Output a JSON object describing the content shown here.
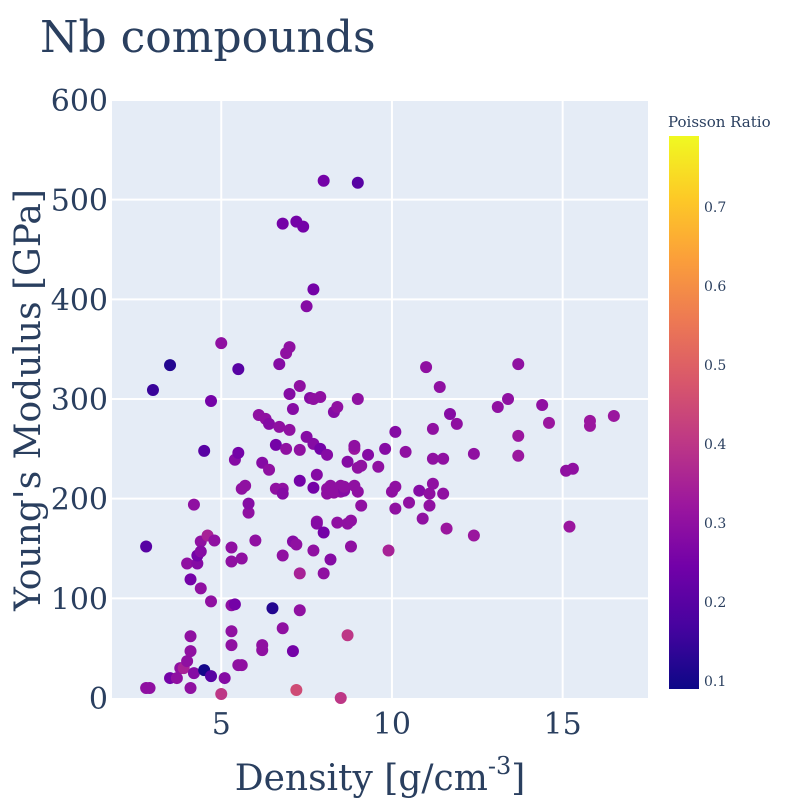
{
  "chart_data": {
    "type": "scatter",
    "title": "Nb compounds",
    "xlabel": "Density [g/cm",
    "xlabel_sup": "-3",
    "xlabel_end": "]",
    "ylabel": "Young's Modulus [GPa]",
    "xlim": [
      1.8,
      17.5
    ],
    "ylim": [
      0,
      600
    ],
    "xticks": [
      5,
      10,
      15
    ],
    "yticks": [
      0,
      100,
      200,
      300,
      400,
      500,
      600
    ],
    "colorbar": {
      "title": "Poisson Ratio",
      "range": [
        0.09,
        0.79
      ],
      "ticks": [
        0.1,
        0.2,
        0.3,
        0.4,
        0.5,
        0.6,
        0.7
      ],
      "colorscale": [
        "#0d0887",
        "#46039f",
        "#7201a8",
        "#9c179e",
        "#bd3786",
        "#d8576b",
        "#ed7953",
        "#fb9f3a",
        "#fdca26",
        "#f0f921"
      ]
    },
    "grid": true,
    "points": [
      [
        2.8,
        10,
        0.3
      ],
      [
        2.9,
        10,
        0.3
      ],
      [
        2.8,
        152,
        0.2
      ],
      [
        3.0,
        309,
        0.15
      ],
      [
        3.5,
        334,
        0.12
      ],
      [
        3.5,
        20,
        0.25
      ],
      [
        3.7,
        20,
        0.3
      ],
      [
        3.8,
        30,
        0.3
      ],
      [
        3.9,
        30,
        0.35
      ],
      [
        4.0,
        135,
        0.3
      ],
      [
        4.0,
        37,
        0.3
      ],
      [
        4.1,
        62,
        0.3
      ],
      [
        4.1,
        47,
        0.3
      ],
      [
        4.1,
        10,
        0.3
      ],
      [
        4.1,
        119,
        0.25
      ],
      [
        4.2,
        194,
        0.3
      ],
      [
        4.2,
        25,
        0.28
      ],
      [
        4.3,
        135,
        0.28
      ],
      [
        4.3,
        143,
        0.25
      ],
      [
        4.4,
        157,
        0.3
      ],
      [
        4.4,
        147,
        0.28
      ],
      [
        4.4,
        110,
        0.3
      ],
      [
        4.5,
        28,
        0.1
      ],
      [
        4.5,
        248,
        0.2
      ],
      [
        4.6,
        163,
        0.35
      ],
      [
        4.7,
        22,
        0.2
      ],
      [
        4.7,
        97,
        0.3
      ],
      [
        4.7,
        298,
        0.25
      ],
      [
        4.8,
        158,
        0.3
      ],
      [
        5.0,
        4,
        0.4
      ],
      [
        5.0,
        356,
        0.3
      ],
      [
        5.1,
        20,
        0.28
      ],
      [
        5.3,
        93,
        0.3
      ],
      [
        5.3,
        67,
        0.3
      ],
      [
        5.3,
        53,
        0.3
      ],
      [
        5.3,
        137,
        0.3
      ],
      [
        5.3,
        151,
        0.3
      ],
      [
        5.4,
        239,
        0.28
      ],
      [
        5.4,
        94,
        0.25
      ],
      [
        5.5,
        246,
        0.25
      ],
      [
        5.5,
        330,
        0.2
      ],
      [
        5.5,
        33,
        0.3
      ],
      [
        5.6,
        33,
        0.3
      ],
      [
        5.6,
        140,
        0.3
      ],
      [
        5.6,
        210,
        0.3
      ],
      [
        5.7,
        213,
        0.3
      ],
      [
        5.8,
        186,
        0.3
      ],
      [
        5.8,
        195,
        0.28
      ],
      [
        6.0,
        158,
        0.3
      ],
      [
        6.1,
        284,
        0.3
      ],
      [
        6.2,
        48,
        0.3
      ],
      [
        6.2,
        53,
        0.3
      ],
      [
        6.2,
        236,
        0.28
      ],
      [
        6.3,
        280,
        0.3
      ],
      [
        6.4,
        275,
        0.28
      ],
      [
        6.4,
        229,
        0.3
      ],
      [
        6.5,
        90,
        0.12
      ],
      [
        6.6,
        210,
        0.3
      ],
      [
        6.6,
        254,
        0.25
      ],
      [
        6.7,
        335,
        0.28
      ],
      [
        6.7,
        272,
        0.3
      ],
      [
        6.8,
        476,
        0.25
      ],
      [
        6.8,
        210,
        0.3
      ],
      [
        6.8,
        205,
        0.28
      ],
      [
        6.8,
        70,
        0.3
      ],
      [
        6.8,
        143,
        0.3
      ],
      [
        6.9,
        346,
        0.3
      ],
      [
        6.9,
        250,
        0.3
      ],
      [
        7.0,
        305,
        0.28
      ],
      [
        7.0,
        269,
        0.3
      ],
      [
        7.0,
        352,
        0.3
      ],
      [
        7.1,
        290,
        0.28
      ],
      [
        7.1,
        47,
        0.25
      ],
      [
        7.1,
        157,
        0.28
      ],
      [
        7.2,
        478,
        0.25
      ],
      [
        7.2,
        154,
        0.3
      ],
      [
        7.2,
        8,
        0.45
      ],
      [
        7.3,
        88,
        0.3
      ],
      [
        7.3,
        125,
        0.35
      ],
      [
        7.3,
        313,
        0.3
      ],
      [
        7.3,
        249,
        0.3
      ],
      [
        7.3,
        218,
        0.25
      ],
      [
        7.4,
        473,
        0.25
      ],
      [
        7.5,
        393,
        0.28
      ],
      [
        7.5,
        262,
        0.28
      ],
      [
        7.6,
        301,
        0.28
      ],
      [
        7.7,
        410,
        0.25
      ],
      [
        7.7,
        300,
        0.3
      ],
      [
        7.7,
        255,
        0.28
      ],
      [
        7.7,
        211,
        0.25
      ],
      [
        7.7,
        148,
        0.3
      ],
      [
        7.8,
        224,
        0.28
      ],
      [
        7.8,
        177,
        0.3
      ],
      [
        7.8,
        175,
        0.28
      ],
      [
        7.9,
        250,
        0.25
      ],
      [
        7.9,
        302,
        0.3
      ],
      [
        8.0,
        519,
        0.25
      ],
      [
        8.0,
        125,
        0.3
      ],
      [
        8.0,
        166,
        0.25
      ],
      [
        8.1,
        244,
        0.28
      ],
      [
        8.1,
        210,
        0.3
      ],
      [
        8.1,
        205,
        0.3
      ],
      [
        8.2,
        139,
        0.28
      ],
      [
        8.2,
        213,
        0.3
      ],
      [
        8.3,
        287,
        0.28
      ],
      [
        8.3,
        206,
        0.3
      ],
      [
        8.4,
        292,
        0.3
      ],
      [
        8.4,
        176,
        0.3
      ],
      [
        8.5,
        0,
        0.4
      ],
      [
        8.5,
        213,
        0.3
      ],
      [
        8.5,
        207,
        0.3
      ],
      [
        8.6,
        208,
        0.28
      ],
      [
        8.6,
        212,
        0.3
      ],
      [
        8.7,
        63,
        0.4
      ],
      [
        8.7,
        237,
        0.28
      ],
      [
        8.7,
        175,
        0.3
      ],
      [
        8.8,
        152,
        0.3
      ],
      [
        8.8,
        178,
        0.3
      ],
      [
        8.9,
        213,
        0.3
      ],
      [
        8.9,
        250,
        0.32
      ],
      [
        8.9,
        253,
        0.3
      ],
      [
        9.0,
        300,
        0.3
      ],
      [
        9.0,
        207,
        0.3
      ],
      [
        9.0,
        231,
        0.3
      ],
      [
        9.0,
        517,
        0.2
      ],
      [
        9.1,
        193,
        0.3
      ],
      [
        9.1,
        233,
        0.3
      ],
      [
        9.3,
        244,
        0.28
      ],
      [
        9.6,
        232,
        0.3
      ],
      [
        9.8,
        250,
        0.28
      ],
      [
        9.9,
        148,
        0.35
      ],
      [
        10.0,
        207,
        0.3
      ],
      [
        10.1,
        267,
        0.28
      ],
      [
        10.1,
        212,
        0.3
      ],
      [
        10.1,
        190,
        0.3
      ],
      [
        10.4,
        247,
        0.3
      ],
      [
        10.5,
        196,
        0.3
      ],
      [
        10.8,
        208,
        0.28
      ],
      [
        10.9,
        180,
        0.3
      ],
      [
        11.0,
        332,
        0.3
      ],
      [
        11.1,
        205,
        0.3
      ],
      [
        11.1,
        193,
        0.3
      ],
      [
        11.2,
        240,
        0.3
      ],
      [
        11.2,
        215,
        0.3
      ],
      [
        11.2,
        270,
        0.3
      ],
      [
        11.4,
        312,
        0.3
      ],
      [
        11.5,
        205,
        0.3
      ],
      [
        11.5,
        240,
        0.3
      ],
      [
        11.6,
        170,
        0.32
      ],
      [
        11.7,
        285,
        0.28
      ],
      [
        11.9,
        275,
        0.3
      ],
      [
        12.4,
        163,
        0.32
      ],
      [
        12.4,
        245,
        0.3
      ],
      [
        13.1,
        292,
        0.3
      ],
      [
        13.4,
        300,
        0.3
      ],
      [
        13.7,
        335,
        0.3
      ],
      [
        13.7,
        263,
        0.32
      ],
      [
        13.7,
        243,
        0.32
      ],
      [
        14.4,
        294,
        0.3
      ],
      [
        14.6,
        276,
        0.32
      ],
      [
        15.1,
        228,
        0.3
      ],
      [
        15.2,
        172,
        0.32
      ],
      [
        15.3,
        230,
        0.3
      ],
      [
        15.8,
        278,
        0.32
      ],
      [
        15.8,
        273,
        0.32
      ],
      [
        16.5,
        283,
        0.32
      ]
    ]
  }
}
